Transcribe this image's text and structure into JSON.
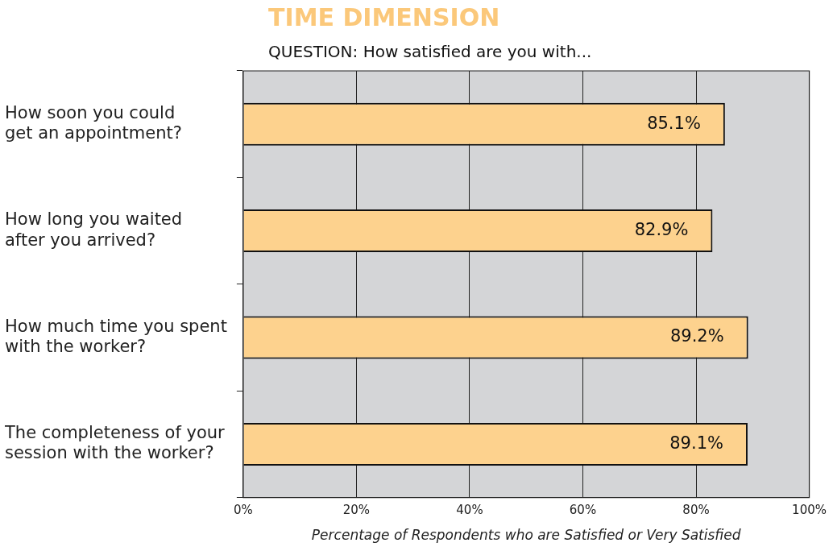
{
  "chart_data": {
    "type": "bar",
    "orientation": "horizontal",
    "title": "TIME DIMENSION",
    "subtitle": "QUESTION:  How satisfied are you with...",
    "xlabel": "Percentage of Respondents who are Satisfied or Very Satisfied",
    "categories": [
      "How soon you could\nget an appointment?",
      "How long you waited\nafter you arrived?",
      "How much time you spent\nwith the worker?",
      "The completeness of your\nsession with the worker?"
    ],
    "values": [
      85.1,
      82.9,
      89.2,
      89.1
    ],
    "value_labels": [
      "85.1%",
      "82.9%",
      "89.2%",
      "89.1%"
    ],
    "color": "#fdd28e",
    "xlim": [
      0,
      100
    ],
    "xticks": [
      {
        "value": 0,
        "label": "0%"
      },
      {
        "value": 20,
        "label": "20%"
      },
      {
        "value": 40,
        "label": "40%"
      },
      {
        "value": 60,
        "label": "60%"
      },
      {
        "value": 80,
        "label": "80%"
      },
      {
        "value": 100,
        "label": "100%"
      }
    ],
    "grid": "x",
    "legend": false
  }
}
